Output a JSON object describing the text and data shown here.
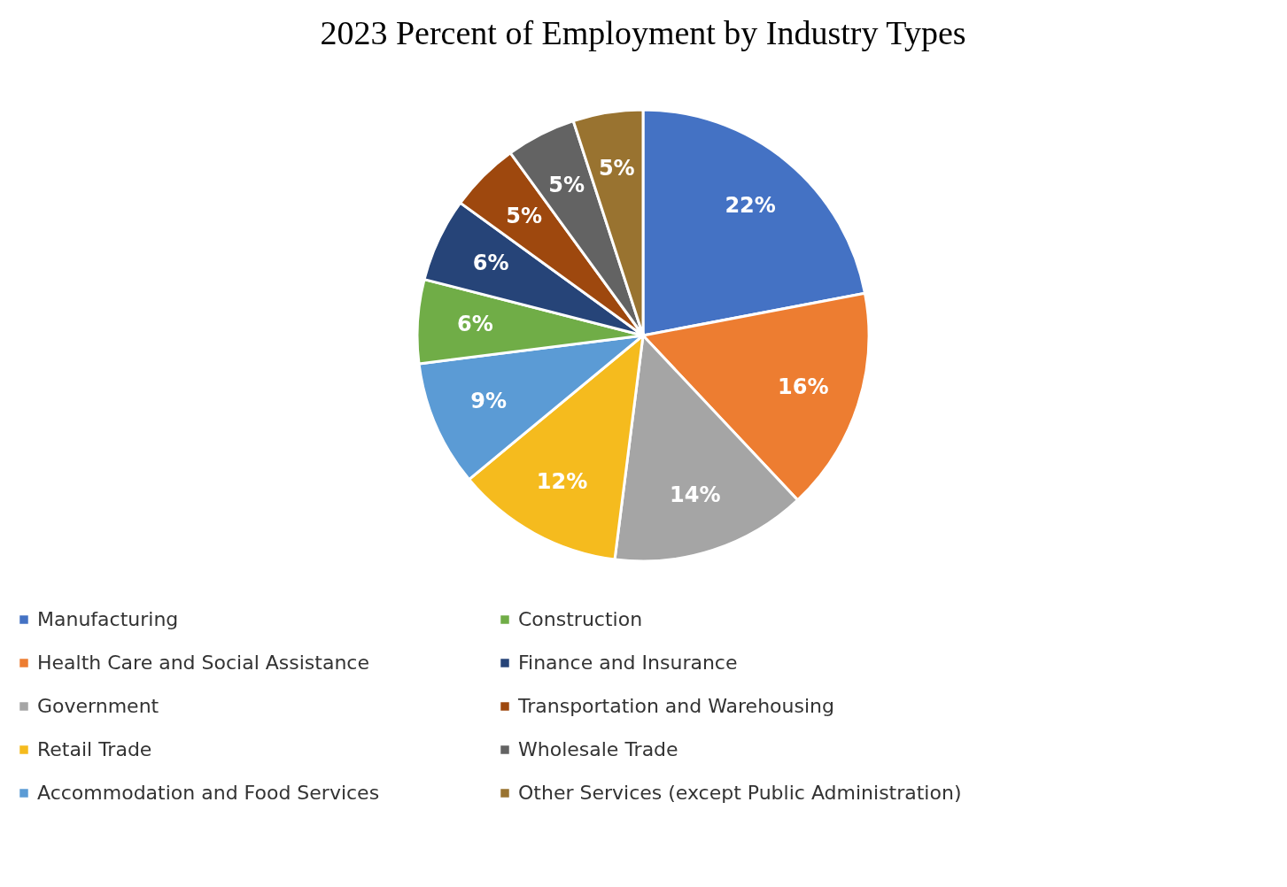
{
  "chart_data": {
    "type": "pie",
    "title": "2023 Percent of Employment by Industry Types",
    "categories": [
      "Manufacturing",
      "Health Care and Social Assistance",
      "Government",
      "Retail Trade",
      "Accommodation and Food Services",
      "Construction",
      "Finance and Insurance",
      "Transportation and Warehousing",
      "Wholesale Trade",
      "Other Services (except Public Administration)"
    ],
    "values": [
      22,
      16,
      14,
      12,
      9,
      6,
      6,
      5,
      5,
      5
    ],
    "value_labels": [
      "22%",
      "16%",
      "14%",
      "12%",
      "9%",
      "6%",
      "6%",
      "5%",
      "5%",
      "5%"
    ],
    "colors": [
      "#4472c4",
      "#ed7d31",
      "#a5a5a5",
      "#f5bb1e",
      "#5b9bd5",
      "#70ad47",
      "#264478",
      "#9e480e",
      "#636363",
      "#997330"
    ],
    "legend": "bottom"
  }
}
